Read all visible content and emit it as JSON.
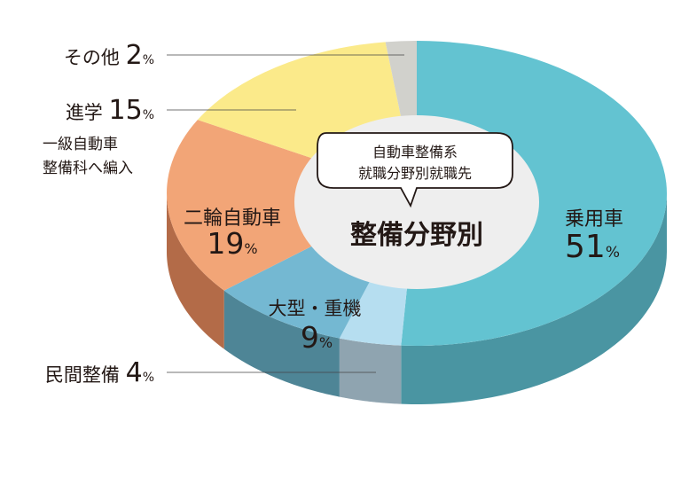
{
  "chart_data": {
    "type": "pie",
    "title": "整備分野別",
    "subtitle_lines": [
      "自動車整備系",
      "就職分野別就職先"
    ],
    "categories": [
      "乗用車",
      "民間整備",
      "大型・重機",
      "二輪自動車",
      "進学",
      "その他"
    ],
    "values": [
      51,
      4,
      9,
      19,
      15,
      2
    ],
    "unit": "%",
    "colors": [
      "#63c3d1",
      "#b6def0",
      "#74b8d2",
      "#f2a577",
      "#fbea8a",
      "#d1d1cc"
    ],
    "side_colors": [
      "#4a95a2",
      "#8fa4b0",
      "#4e8596",
      "#b36b48",
      "#cdbd65",
      "#a5a59f"
    ],
    "start_angle_deg": 0,
    "direction": "clockwise",
    "style": "3d",
    "labels": [
      {
        "name": "乗用車",
        "value": "51",
        "unit": "%",
        "position": "inside",
        "note": ""
      },
      {
        "name": "民間整備",
        "value": "4",
        "unit": "%",
        "position": "outside",
        "note": ""
      },
      {
        "name": "大型・重機",
        "value": "9",
        "unit": "%",
        "position": "inside",
        "note": ""
      },
      {
        "name": "二輪自動車",
        "value": "19",
        "unit": "%",
        "position": "inside",
        "note": ""
      },
      {
        "name": "進学",
        "value": "15",
        "unit": "%",
        "position": "outside",
        "note_lines": [
          "一級自動車",
          "整備科へ編入"
        ]
      },
      {
        "name": "その他",
        "value": "2",
        "unit": "%",
        "position": "outside",
        "note": ""
      }
    ]
  }
}
